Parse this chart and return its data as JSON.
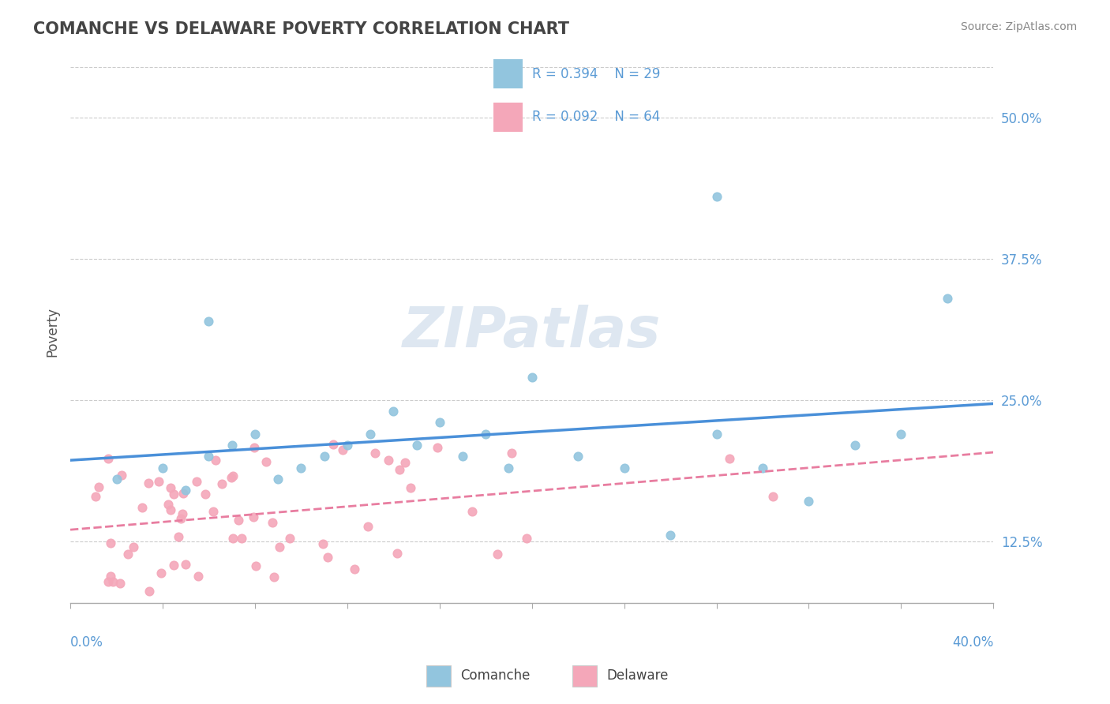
{
  "title": "COMANCHE VS DELAWARE POVERTY CORRELATION CHART",
  "source": "Source: ZipAtlas.com",
  "ylabel": "Poverty",
  "y_ticks": [
    0.125,
    0.25,
    0.375,
    0.5
  ],
  "y_tick_labels": [
    "12.5%",
    "25.0%",
    "37.5%",
    "50.0%"
  ],
  "x_min": 0.0,
  "x_max": 0.4,
  "y_min": 0.07,
  "y_max": 0.55,
  "comanche_R": 0.394,
  "comanche_N": 29,
  "delaware_R": 0.092,
  "delaware_N": 64,
  "comanche_color": "#92C5DE",
  "delaware_color": "#F4A7B9",
  "trend_comanche_color": "#4A90D9",
  "trend_delaware_color": "#E87DA0",
  "watermark": "ZIPatlas",
  "watermark_color": "#C8D8E8",
  "comanche_x": [
    0.02,
    0.04,
    0.05,
    0.06,
    0.07,
    0.08,
    0.09,
    0.1,
    0.11,
    0.12,
    0.13,
    0.14,
    0.15,
    0.16,
    0.17,
    0.18,
    0.19,
    0.2,
    0.22,
    0.24,
    0.26,
    0.28,
    0.3,
    0.32,
    0.34,
    0.36,
    0.38,
    0.28,
    0.06
  ],
  "comanche_y": [
    0.18,
    0.19,
    0.17,
    0.2,
    0.21,
    0.22,
    0.18,
    0.19,
    0.2,
    0.21,
    0.22,
    0.24,
    0.21,
    0.23,
    0.2,
    0.22,
    0.19,
    0.27,
    0.2,
    0.19,
    0.13,
    0.22,
    0.19,
    0.16,
    0.21,
    0.22,
    0.34,
    0.43,
    0.32
  ],
  "grid_color": "#CCCCCC",
  "spine_color": "#AAAAAA",
  "tick_label_color": "#5B9BD5",
  "title_color": "#444444",
  "source_color": "#888888",
  "ylabel_color": "#555555"
}
